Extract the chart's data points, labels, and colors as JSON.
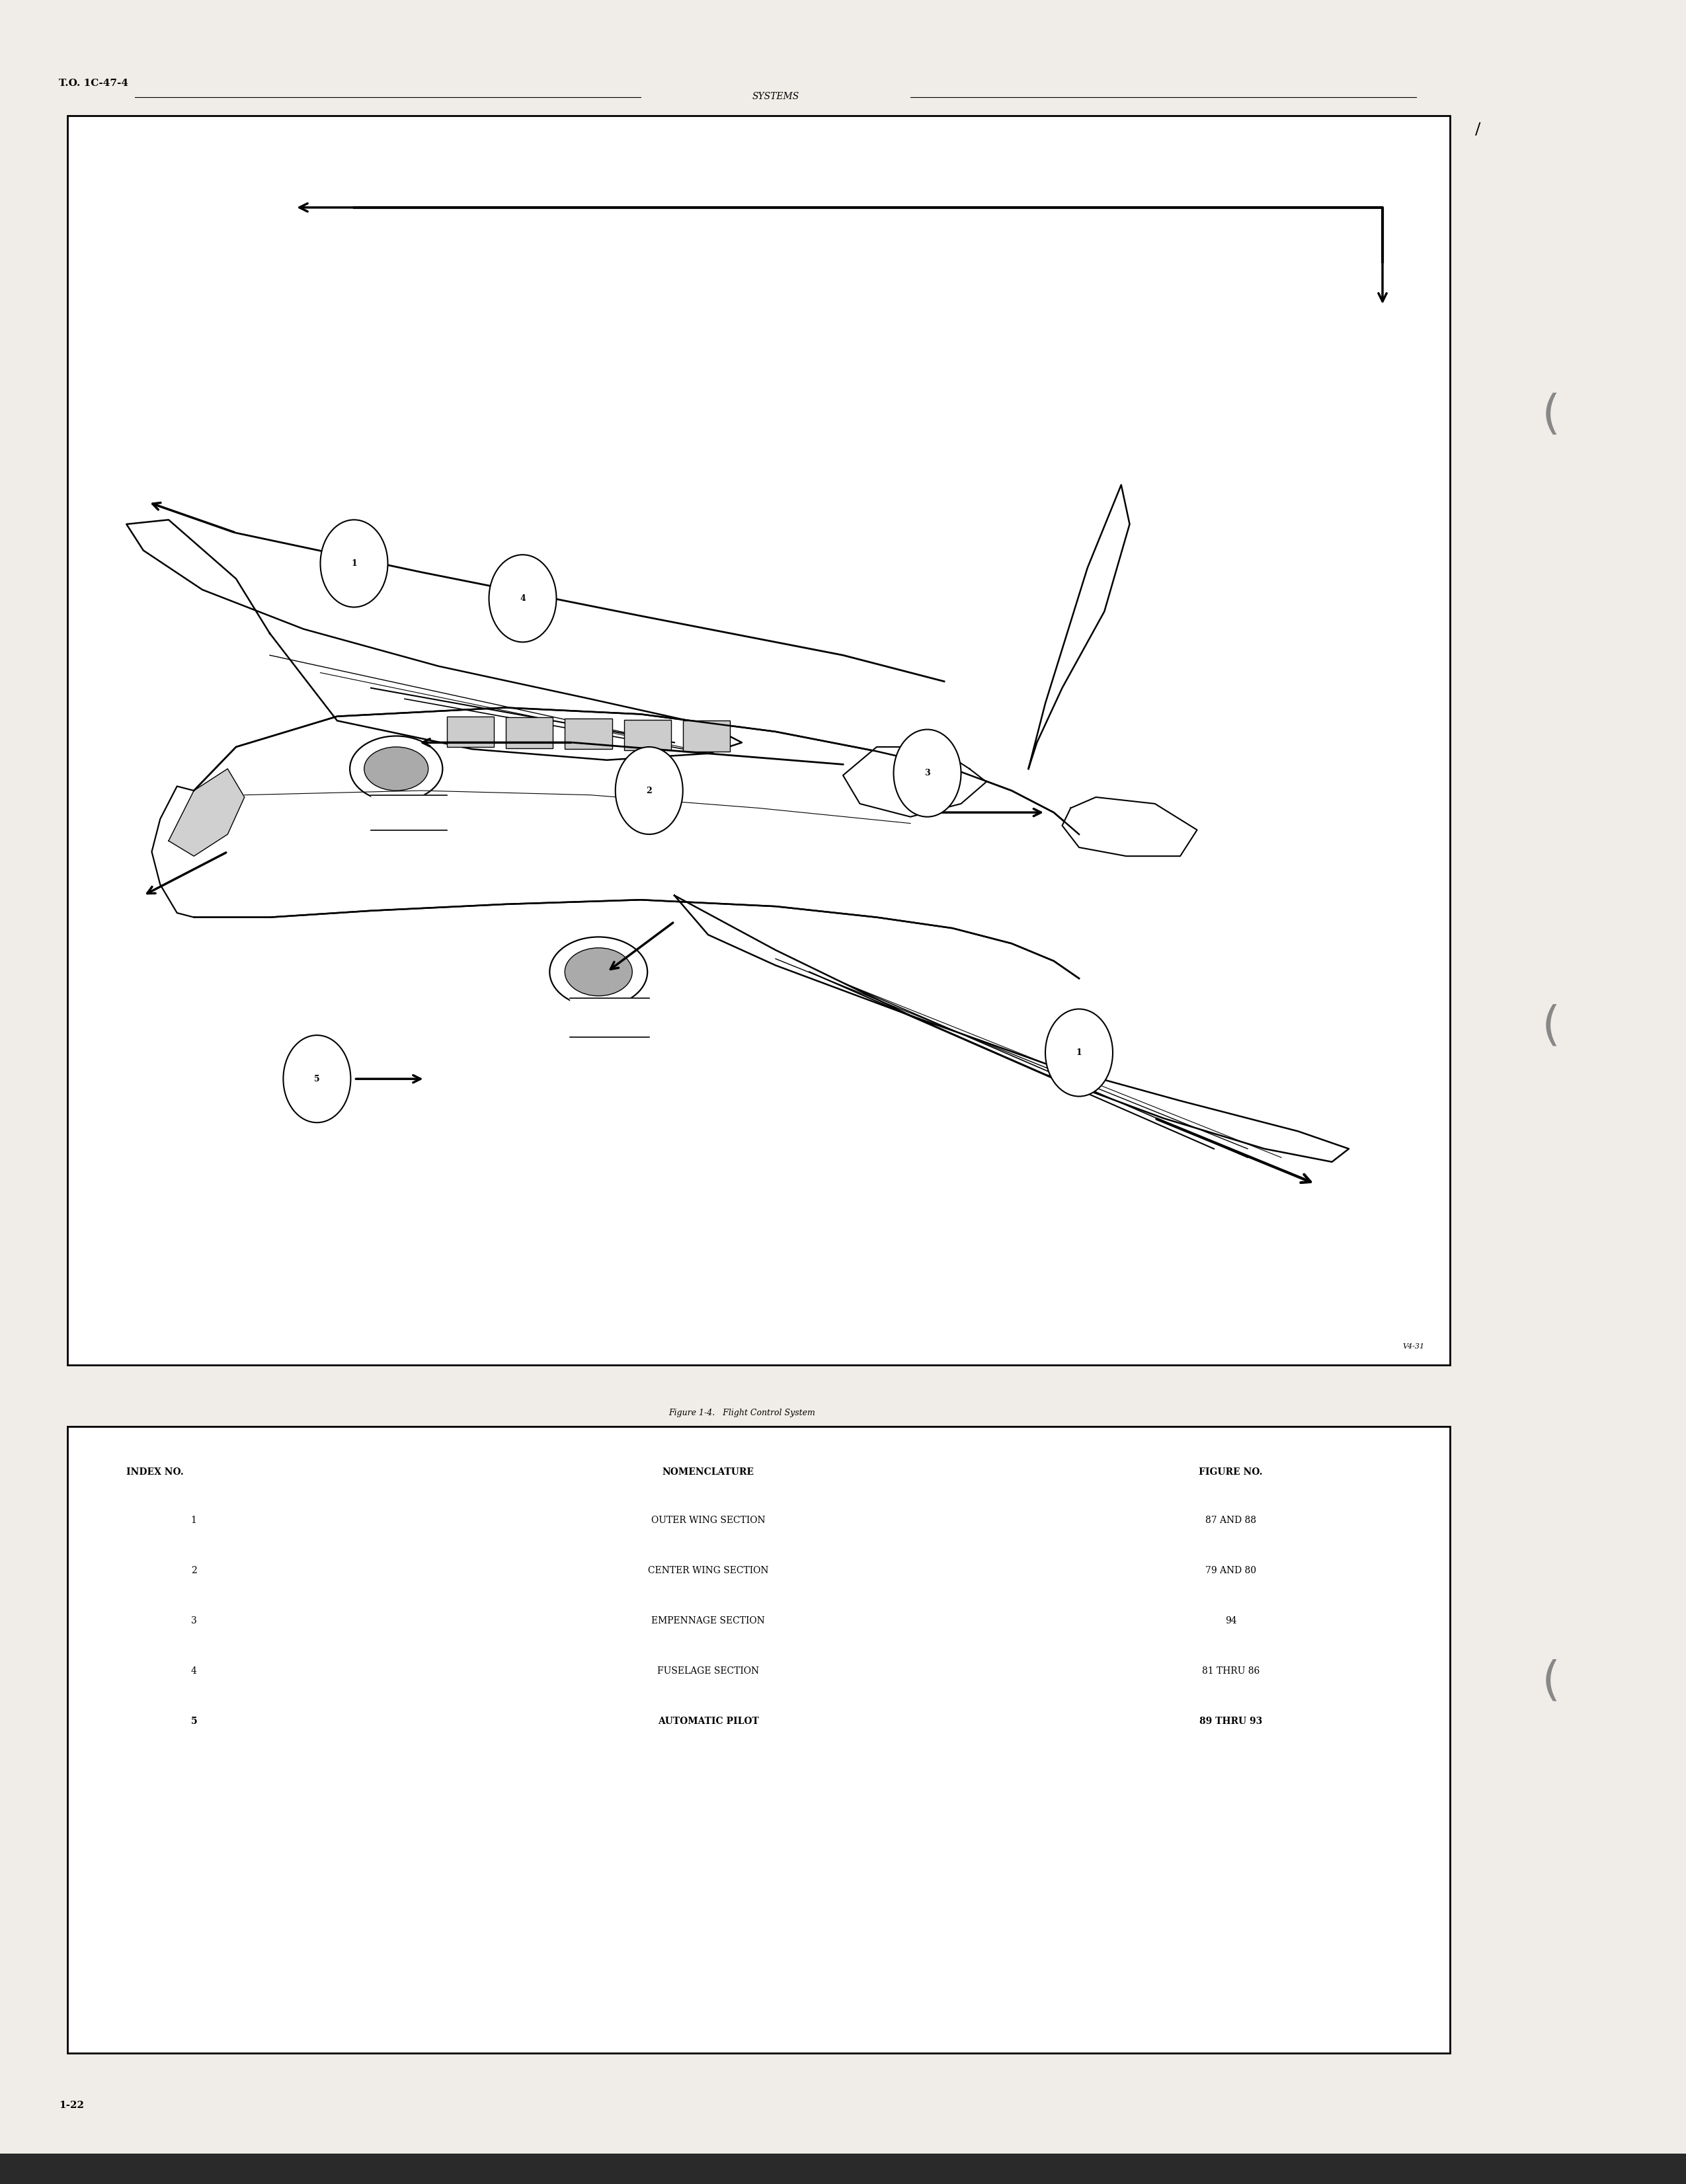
{
  "page_background": "#f0ede8",
  "header_text": "T.O. 1C-47-4",
  "header_fontsize": 11,
  "section_title": "SYSTEMS",
  "section_title_fontsize": 10,
  "figure_caption": "Figure 1-4.   Flight Control System",
  "figure_caption_fontsize": 9,
  "footer_text": "1-22",
  "footer_fontsize": 11,
  "watermark_text": "V4-31",
  "table_headers": [
    "INDEX NO.",
    "NOMENCLATURE",
    "FIGURE NO."
  ],
  "table_rows": [
    [
      "1",
      "OUTER WING SECTION",
      "87 AND 88"
    ],
    [
      "2",
      "CENTER WING SECTION",
      "79 AND 80"
    ],
    [
      "3",
      "EMPENNAGE SECTION",
      "94"
    ],
    [
      "4",
      "FUSELAGE SECTION",
      "81 THRU 86"
    ],
    [
      "5",
      "AUTOMATIC PILOT",
      "89 THRU 93"
    ]
  ],
  "table_header_fontsize": 9,
  "table_row_fontsize": 9
}
